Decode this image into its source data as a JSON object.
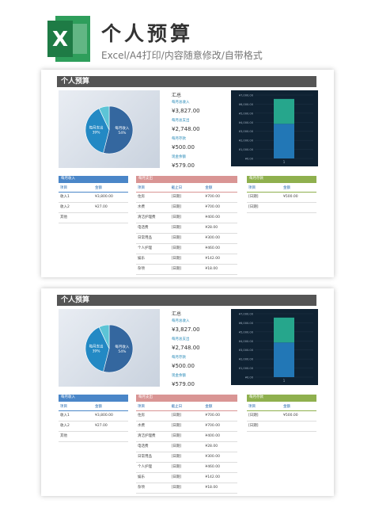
{
  "header": {
    "title": "个人预算",
    "subtitle": "Excel/A4打印/内容随意修改/自带格式"
  },
  "sheet": {
    "title": "个人预算",
    "pie": {
      "type": "pie",
      "categories": [
        "每月收入",
        "每月支出",
        null
      ],
      "values": [
        54,
        39,
        7
      ],
      "value_labels": [
        "54%",
        "39%",
        null
      ],
      "colors": [
        "#34679f",
        "#2389c4",
        "#5cc4d6"
      ]
    },
    "summary": {
      "title": "汇总",
      "items": [
        {
          "label": "每月总收入",
          "value": "¥3,827.00"
        },
        {
          "label": "每月总支出",
          "value": "¥2,748.00"
        },
        {
          "label": "每月存款",
          "value": "¥500.00"
        },
        {
          "label": "现金余额",
          "value": "¥579.00"
        }
      ]
    },
    "bar": {
      "type": "bar",
      "categories": [
        "1"
      ],
      "series": [
        {
          "color": "#2277b6",
          "values": [
            3827
          ]
        },
        {
          "color": "#26a68c",
          "values": [
            2748
          ]
        }
      ],
      "ylim": [
        0,
        7000
      ],
      "yticks": [
        {
          "value": 0,
          "label": "¥0.00"
        },
        {
          "value": 1000,
          "label": "¥1,000.00"
        },
        {
          "value": 2000,
          "label": "¥2,000.00"
        },
        {
          "value": 3000,
          "label": "¥3,000.00"
        },
        {
          "value": 4000,
          "label": "¥4,000.00"
        },
        {
          "value": 5000,
          "label": "¥5,000.00"
        },
        {
          "value": 6000,
          "label": "¥6,000.00"
        },
        {
          "value": 7000,
          "label": "¥7,000.00"
        }
      ]
    },
    "tables": [
      {
        "title": "每月收入",
        "color": "#4a86c8",
        "columns": [
          "项目",
          "金额"
        ],
        "rows": [
          [
            "收入1",
            "¥3,800.00"
          ],
          [
            "收入2",
            "¥27.00"
          ],
          [
            "其他"
          ]
        ]
      },
      {
        "title": "每月支出",
        "color": "#d99594",
        "columns": [
          "项目",
          "截止日",
          "金额"
        ],
        "rows": [
          [
            "住房",
            "[日期]",
            "¥700.00"
          ],
          [
            "水费",
            "[日期]",
            "¥700.00"
          ],
          [
            "清洁护理费",
            "[日期]",
            "¥400.00"
          ],
          [
            "电话费",
            "[日期]",
            "¥28.00"
          ],
          [
            "日常用品",
            "[日期]",
            "¥300.00"
          ],
          [
            "个人护理",
            "[日期]",
            "¥460.00"
          ],
          [
            "娱乐",
            "[日期]",
            "¥142.00"
          ],
          [
            "杂项",
            "[日期]",
            "¥18.00"
          ]
        ]
      },
      {
        "title": "每月存款",
        "color": "#8fb04e",
        "columns": [
          "项目",
          "金额"
        ],
        "rows": [
          [
            "[日期]",
            "¥500.00"
          ],
          [
            "[日期]"
          ]
        ]
      }
    ]
  }
}
